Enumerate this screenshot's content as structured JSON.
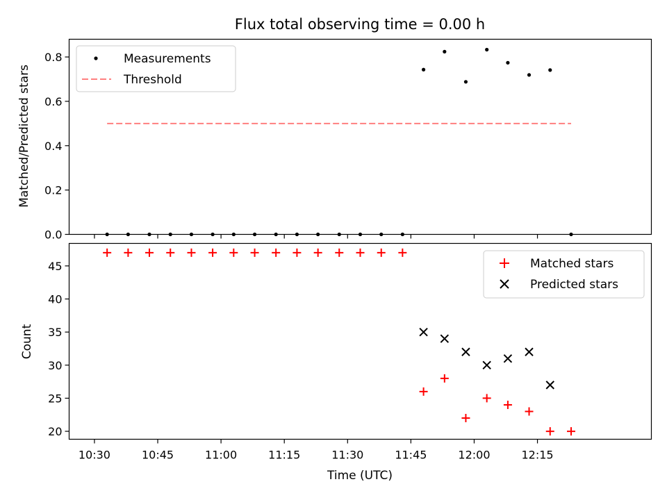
{
  "chart_data": [
    {
      "type": "scatter",
      "title": "Flux total observing time = 0.00 h",
      "xlabel": "",
      "ylabel": "Matched/Predicted stars",
      "ylim": [
        0,
        0.88
      ],
      "yticks": [
        "0.0",
        "0.2",
        "0.4",
        "0.6",
        "0.8"
      ],
      "ytick_values": [
        0,
        0.2,
        0.4,
        0.6,
        0.8
      ],
      "legend_position": "top-left",
      "series": [
        {
          "name": "Measurements",
          "marker": "dot",
          "color": "#000000",
          "x": [
            10.55,
            10.633,
            10.717,
            10.8,
            10.883,
            10.967,
            11.05,
            11.133,
            11.217,
            11.3,
            11.383,
            11.467,
            11.55,
            11.633,
            11.717,
            11.8,
            11.883,
            11.967,
            12.05,
            12.133,
            12.217,
            12.3,
            12.383
          ],
          "y": [
            0,
            0,
            0,
            0,
            0,
            0,
            0,
            0,
            0,
            0,
            0,
            0,
            0,
            0,
            0,
            0.743,
            0.824,
            0.688,
            0.833,
            0.774,
            0.719,
            0.741,
            0
          ]
        },
        {
          "name": "Threshold",
          "marker": "dashed-line",
          "color": "#ff7f7f",
          "x": [
            10.55,
            12.383
          ],
          "y": [
            0.5,
            0.5
          ]
        }
      ]
    },
    {
      "type": "scatter",
      "title": "",
      "xlabel": "Time (UTC)",
      "ylabel": "Count",
      "ylim": [
        18.8,
        48.4
      ],
      "yticks": [
        "20",
        "25",
        "30",
        "35",
        "40",
        "45"
      ],
      "ytick_values": [
        20,
        25,
        30,
        35,
        40,
        45
      ],
      "legend_position": "top-right",
      "series": [
        {
          "name": "Matched stars",
          "marker": "plus",
          "color": "#ff0000",
          "x": [
            10.55,
            10.633,
            10.717,
            10.8,
            10.883,
            10.967,
            11.05,
            11.133,
            11.217,
            11.3,
            11.383,
            11.467,
            11.55,
            11.633,
            11.717,
            11.8,
            11.883,
            11.967,
            12.05,
            12.133,
            12.217,
            12.3,
            12.383
          ],
          "y": [
            47,
            47,
            47,
            47,
            47,
            47,
            47,
            47,
            47,
            47,
            47,
            47,
            47,
            47,
            47,
            26,
            28,
            22,
            25,
            24,
            23,
            20,
            20
          ]
        },
        {
          "name": "Predicted stars",
          "marker": "x",
          "color": "#000000",
          "x": [
            11.8,
            11.883,
            11.967,
            12.05,
            12.133,
            12.217,
            12.3
          ],
          "y": [
            35,
            34,
            32,
            30,
            31,
            32,
            27
          ]
        }
      ]
    }
  ],
  "x_axis": {
    "xlim": [
      10.4,
      12.7
    ],
    "tick_values": [
      10.5,
      10.75,
      11.0,
      11.25,
      11.5,
      11.75,
      12.0,
      12.25
    ],
    "tick_labels": [
      "10:30",
      "10:45",
      "11:00",
      "11:15",
      "11:30",
      "11:45",
      "12:00",
      "12:15"
    ]
  }
}
